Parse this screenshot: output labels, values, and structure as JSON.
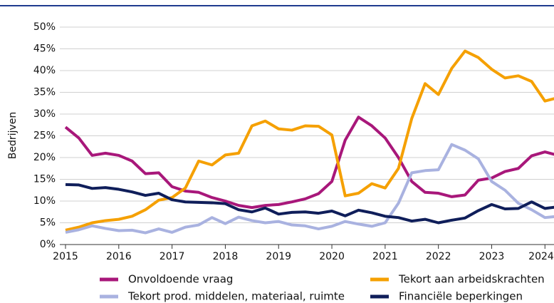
{
  "chart_data": {
    "type": "line",
    "y_label": "Bedrijven",
    "x": [
      2015,
      2015.25,
      2015.5,
      2015.75,
      2016,
      2016.25,
      2016.5,
      2016.75,
      2017,
      2017.25,
      2017.5,
      2017.75,
      2018,
      2018.25,
      2018.5,
      2018.75,
      2019,
      2019.25,
      2019.5,
      2019.75,
      2020,
      2020.25,
      2020.5,
      2020.75,
      2021,
      2021.25,
      2021.5,
      2021.75,
      2022,
      2022.25,
      2022.5,
      2022.75,
      2023,
      2023.25,
      2023.5,
      2023.75,
      2024,
      2024.25
    ],
    "series": [
      {
        "name": "Onvoldoende vraag",
        "color": "#a8177a",
        "values": [
          27,
          24.5,
          20.5,
          21,
          20.5,
          19.2,
          16.3,
          16.5,
          13.3,
          12.3,
          12,
          10.8,
          10,
          9,
          8.5,
          9,
          9.2,
          9.8,
          10.5,
          11.7,
          14.5,
          24,
          29.3,
          27.3,
          24.5,
          20,
          14.5,
          12,
          11.8,
          11,
          11.4,
          14.8,
          15.3,
          16.8,
          17.5,
          20.4,
          21.3,
          20.5
        ]
      },
      {
        "name": "Tekort aan arbeidskrachten",
        "color": "#f5a000",
        "values": [
          3.3,
          4,
          5,
          5.5,
          5.8,
          6.5,
          8,
          10.2,
          10.8,
          13,
          19.2,
          18.3,
          20.6,
          21,
          27.3,
          28.4,
          26.6,
          26.3,
          27.3,
          27.2,
          25.2,
          11.2,
          11.8,
          14,
          13,
          17.5,
          29,
          37,
          34.5,
          40.5,
          44.5,
          43,
          40.3,
          38.3,
          38.8,
          37.5,
          33,
          33.8
        ]
      },
      {
        "name": "Tekort prod. middelen, materiaal, ruimte",
        "color": "#a9b2e0",
        "values": [
          2.8,
          3.4,
          4.3,
          3.7,
          3.2,
          3.3,
          2.7,
          3.6,
          2.8,
          4,
          4.5,
          6.2,
          4.8,
          6.3,
          5.5,
          5,
          5.3,
          4.5,
          4.3,
          3.6,
          4.2,
          5.3,
          4.7,
          4.2,
          5,
          9.5,
          16.5,
          17,
          17.2,
          23,
          21.7,
          19.7,
          14.5,
          12.5,
          9.5,
          8,
          6.2,
          6.5
        ]
      },
      {
        "name": "Financiële beperkingen",
        "color": "#0f1e5a",
        "values": [
          13.8,
          13.7,
          12.9,
          13.1,
          12.7,
          12.1,
          11.3,
          11.8,
          10.3,
          9.8,
          9.7,
          9.6,
          9.4,
          8,
          7.5,
          8.4,
          7,
          7.4,
          7.5,
          7.2,
          7.7,
          6.6,
          7.9,
          7.3,
          6.5,
          6.2,
          5.4,
          5.8,
          5,
          5.6,
          6.1,
          7.8,
          9.2,
          8.2,
          8.3,
          9.8,
          8.3,
          8.7
        ]
      }
    ],
    "xlim": [
      2015,
      2024.17
    ],
    "xticks": [
      2015,
      2016,
      2017,
      2018,
      2019,
      2020,
      2021,
      2022,
      2023,
      2024
    ],
    "ylim": [
      0,
      50
    ],
    "yticks": [
      {
        "value": 0,
        "label": "0%"
      },
      {
        "value": 5,
        "label": "5%"
      },
      {
        "value": 10,
        "label": "10%"
      },
      {
        "value": 15,
        "label": "15%"
      },
      {
        "value": 20,
        "label": "20%"
      },
      {
        "value": 25,
        "label": "25%"
      },
      {
        "value": 30,
        "label": "30%"
      },
      {
        "value": 35,
        "label": "35%"
      },
      {
        "value": 40,
        "label": "40%"
      },
      {
        "value": 45,
        "label": "45%"
      },
      {
        "value": 50,
        "label": "50%"
      }
    ],
    "grid": true,
    "legend": "bottom"
  }
}
